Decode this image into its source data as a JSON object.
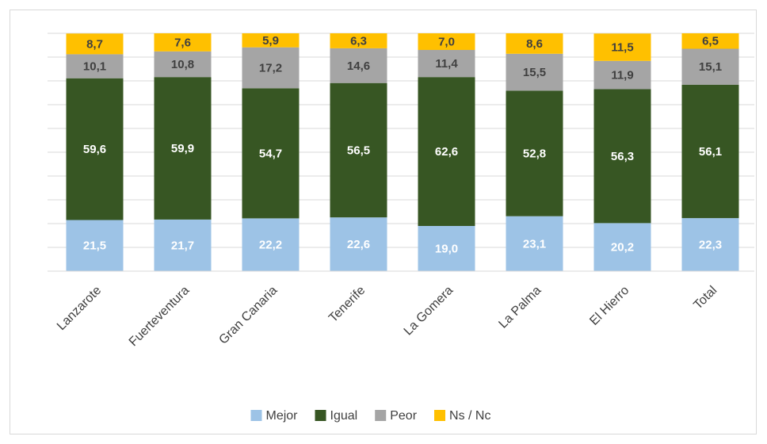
{
  "chart_data": {
    "type": "bar",
    "stacked": true,
    "categories": [
      "Lanzarote",
      "Fuerteventura",
      "Gran Canaria",
      "Tenerife",
      "La Gomera",
      "La Palma",
      "El Hierro",
      "Total"
    ],
    "series": [
      {
        "name": "Mejor",
        "color": "#9dc3e6",
        "values": [
          21.5,
          21.7,
          22.2,
          22.6,
          19.0,
          23.1,
          20.2,
          22.3
        ],
        "value_labels": [
          "21,5",
          "21,7",
          "22,2",
          "22,6",
          "19,0",
          "23,1",
          "20,2",
          "22,3"
        ]
      },
      {
        "name": "Igual",
        "color": "#375623",
        "values": [
          59.6,
          59.9,
          54.7,
          56.5,
          62.6,
          52.8,
          56.3,
          56.1
        ],
        "value_labels": [
          "59,6",
          "59,9",
          "54,7",
          "56,5",
          "62,6",
          "52,8",
          "56,3",
          "56,1"
        ]
      },
      {
        "name": "Peor",
        "color": "#a5a5a5",
        "values": [
          10.1,
          10.8,
          17.2,
          14.6,
          11.4,
          15.5,
          11.9,
          15.1
        ],
        "value_labels": [
          "10,1",
          "10,8",
          "17,2",
          "14,6",
          "11,4",
          "15,5",
          "11,9",
          "15,1"
        ]
      },
      {
        "name": "Ns / Nc",
        "color": "#ffc000",
        "values": [
          8.7,
          7.6,
          5.9,
          6.3,
          7.0,
          8.6,
          11.5,
          6.5
        ],
        "value_labels": [
          "8,7",
          "7,6",
          "5,9",
          "6,3",
          "7,0",
          "8,6",
          "11,5",
          "6,5"
        ]
      }
    ],
    "ylim": [
      0,
      100
    ],
    "yticks": [
      0,
      10,
      20,
      30,
      40,
      50,
      60,
      70,
      80,
      90,
      100
    ],
    "grid": true,
    "legend": "bottom"
  }
}
